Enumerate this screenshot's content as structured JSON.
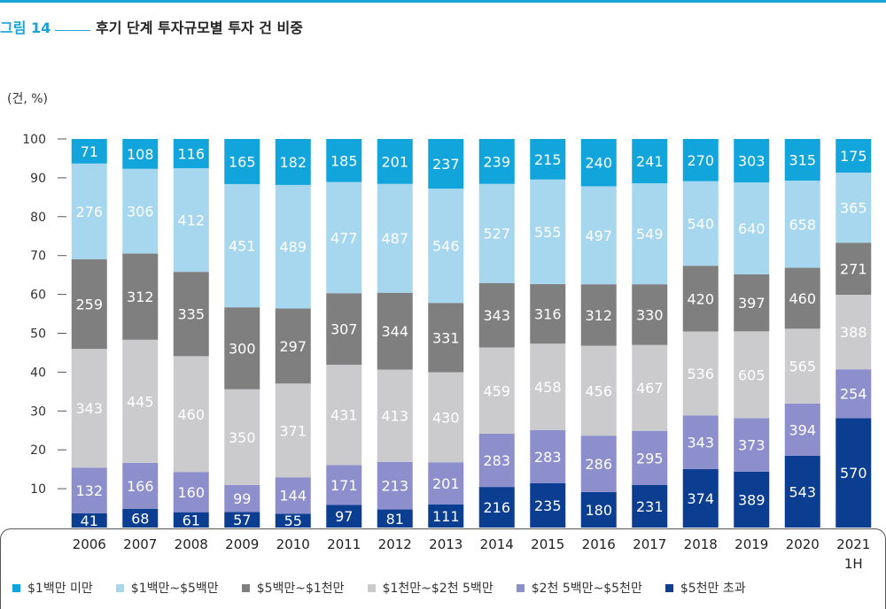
{
  "header": {
    "figure_label": "그림 14",
    "title": "후기 단계 투자규모별 투자 건 비중"
  },
  "chart_data": {
    "type": "bar",
    "stacked": true,
    "normalized": true,
    "unit_label": "(건, %)",
    "categories": [
      "2006",
      "2007",
      "2008",
      "2009",
      "2010",
      "2011",
      "2012",
      "2013",
      "2014",
      "2015",
      "2016",
      "2017",
      "2018",
      "2019",
      "2020",
      "2021\n1H"
    ],
    "yticks": [
      10,
      20,
      30,
      40,
      50,
      60,
      70,
      80,
      90,
      100
    ],
    "ylim": [
      0,
      100
    ],
    "grid": false,
    "legend_position": "bottom",
    "series": [
      {
        "name": "$5천만 초과",
        "color": "#0b3d91",
        "label_color": "#ffffff",
        "values": [
          41,
          68,
          61,
          57,
          55,
          97,
          81,
          111,
          216,
          235,
          180,
          231,
          374,
          389,
          543,
          570
        ]
      },
      {
        "name": "$2천 5백만~$5천만",
        "color": "#8d8fcc",
        "label_color": "#ffffff",
        "values": [
          132,
          166,
          160,
          99,
          144,
          171,
          213,
          201,
          283,
          283,
          286,
          295,
          343,
          373,
          394,
          254
        ]
      },
      {
        "name": "$1천만~$2천 5백만",
        "color": "#cbcbcd",
        "label_color": "#ffffff",
        "values": [
          343,
          445,
          460,
          350,
          371,
          431,
          413,
          430,
          459,
          458,
          456,
          467,
          536,
          605,
          565,
          388
        ]
      },
      {
        "name": "$5백만~$1천만",
        "color": "#7f7f7f",
        "label_color": "#ffffff",
        "values": [
          259,
          312,
          335,
          300,
          297,
          307,
          344,
          331,
          343,
          316,
          312,
          330,
          420,
          397,
          460,
          271
        ]
      },
      {
        "name": "$1백만~$5백만",
        "color": "#a6d7ef",
        "label_color": "#ffffff",
        "values": [
          276,
          306,
          412,
          451,
          489,
          477,
          487,
          546,
          527,
          555,
          497,
          549,
          540,
          640,
          658,
          365
        ]
      },
      {
        "name": "$1백만 미만",
        "color": "#12a5dc",
        "label_color": "#ffffff",
        "values": [
          71,
          108,
          116,
          165,
          182,
          185,
          201,
          237,
          239,
          215,
          240,
          241,
          270,
          303,
          315,
          175
        ]
      }
    ],
    "legend_order": [
      "$1백만 미만",
      "$1백만~$5백만",
      "$5백만~$1천만",
      "$1천만~$2천 5백만",
      "$2천 5백만~$5천만",
      "$5천만 초과"
    ]
  }
}
